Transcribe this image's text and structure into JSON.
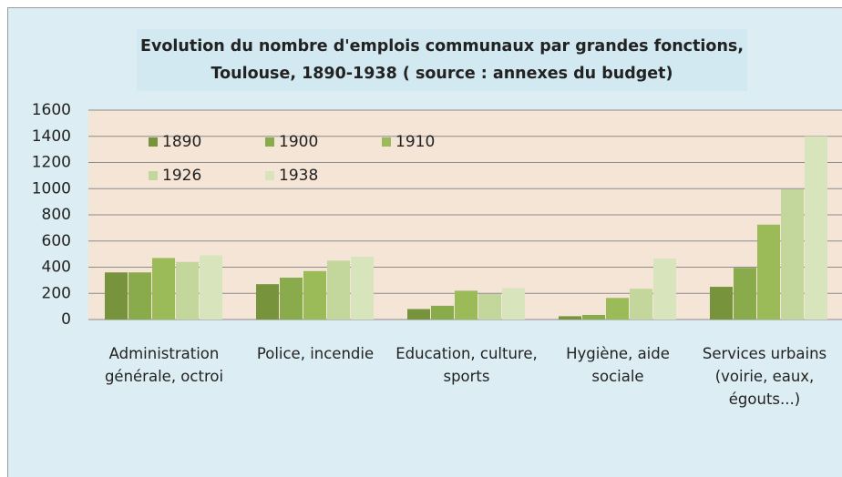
{
  "chart_data": {
    "type": "bar",
    "title": "Evolution du nombre d'emplois communaux par grandes fonctions, Toulouse, 1890-1938  ( source : annexes du budget)",
    "categories": [
      "Administration générale, octroi",
      "Police, incendie",
      "Education, culture, sports",
      "Hygiène, aide sociale",
      "Services urbains (voirie, eaux, égouts...)"
    ],
    "series": [
      {
        "name": "1890",
        "color": "#77933c",
        "values": [
          360,
          270,
          80,
          25,
          250
        ]
      },
      {
        "name": "1900",
        "color": "#8aab4c",
        "values": [
          360,
          320,
          105,
          35,
          395
        ]
      },
      {
        "name": "1910",
        "color": "#9bbb59",
        "values": [
          470,
          370,
          220,
          165,
          725
        ]
      },
      {
        "name": "1926",
        "color": "#c3d69b",
        "values": [
          440,
          450,
          195,
          235,
          995
        ]
      },
      {
        "name": "1938",
        "color": "#d7e4bc",
        "values": [
          490,
          480,
          240,
          465,
          1400
        ]
      }
    ],
    "ylim": [
      0,
      1600
    ],
    "yticks": [
      0,
      200,
      400,
      600,
      800,
      1000,
      1200,
      1400,
      1600
    ],
    "grid": true,
    "legend": "upper left"
  }
}
